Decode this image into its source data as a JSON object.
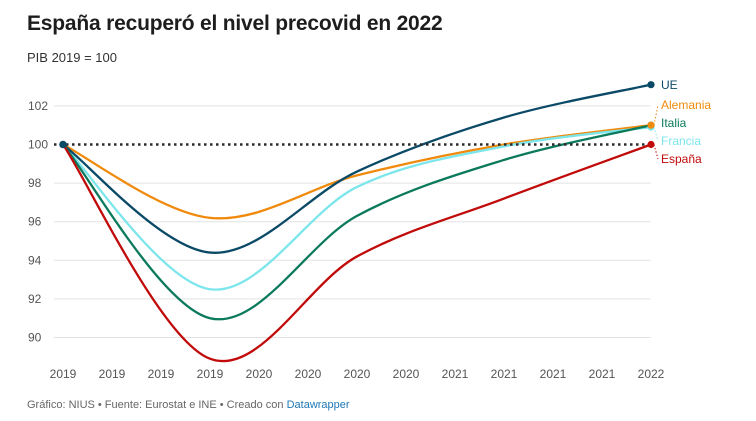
{
  "title": "España recuperó el nivel precovid en 2022",
  "subtitle": "PIB 2019 = 100",
  "footer": {
    "text": "Gráfico: NIUS • Fuente: Eurostat e INE • Creado con ",
    "link": "Datawrapper"
  },
  "chart_data": {
    "type": "line",
    "title": "España recuperó el nivel precovid en 2022",
    "subtitle": "PIB 2019 = 100",
    "xlabel": "",
    "ylabel": "",
    "x": [
      0,
      3,
      6,
      9,
      12
    ],
    "xlim": [
      0,
      12
    ],
    "xticks": [
      "2019",
      "2019",
      "2019",
      "2019",
      "2020",
      "2020",
      "2020",
      "2020",
      "2021",
      "2021",
      "2021",
      "2021",
      "2022"
    ],
    "ylim": [
      89,
      104
    ],
    "yticks": [
      90,
      92,
      94,
      96,
      98,
      100,
      102
    ],
    "reference_line": 100,
    "grid": true,
    "series": [
      {
        "name": "UE",
        "color": "#0b4a67",
        "values": [
          100,
          94.4,
          98.6,
          101.4,
          103.1
        ]
      },
      {
        "name": "Alemania",
        "color": "#f08a0c",
        "values": [
          100,
          96.2,
          98.4,
          100.0,
          101.0
        ]
      },
      {
        "name": "Italia",
        "color": "#0b7a5c",
        "values": [
          100,
          91.0,
          96.3,
          99.2,
          101.0
        ]
      },
      {
        "name": "Francia",
        "color": "#7ce6ec",
        "values": [
          100,
          92.5,
          97.8,
          99.9,
          100.9
        ]
      },
      {
        "name": "España",
        "color": "#c10b0b",
        "values": [
          100,
          88.9,
          94.2,
          97.2,
          100.0
        ]
      }
    ]
  }
}
